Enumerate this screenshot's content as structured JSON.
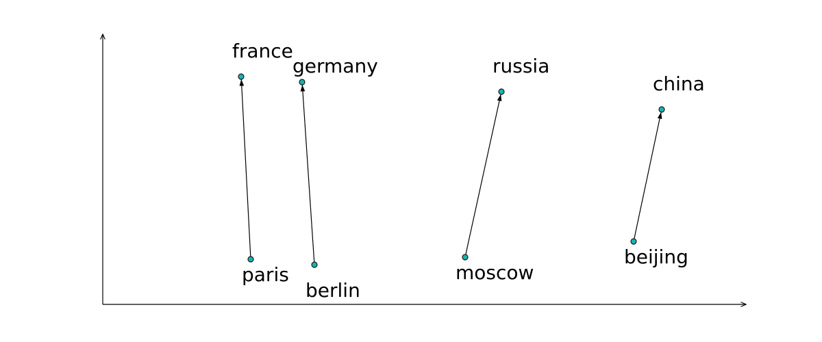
{
  "colors": {
    "node_fill": "#17b3b3",
    "line": "#000000",
    "background": "#ffffff"
  },
  "axes": {
    "x_arrow": true,
    "y_arrow": true
  },
  "pairs": [
    {
      "from": "paris",
      "to": "france"
    },
    {
      "from": "berlin",
      "to": "germany"
    },
    {
      "from": "moscow",
      "to": "russia"
    },
    {
      "from": "beijing",
      "to": "china"
    }
  ],
  "labels": {
    "paris": "paris",
    "france": "france",
    "berlin": "berlin",
    "germany": "germany",
    "moscow": "moscow",
    "russia": "russia",
    "beijing": "beijing",
    "china": "china"
  }
}
